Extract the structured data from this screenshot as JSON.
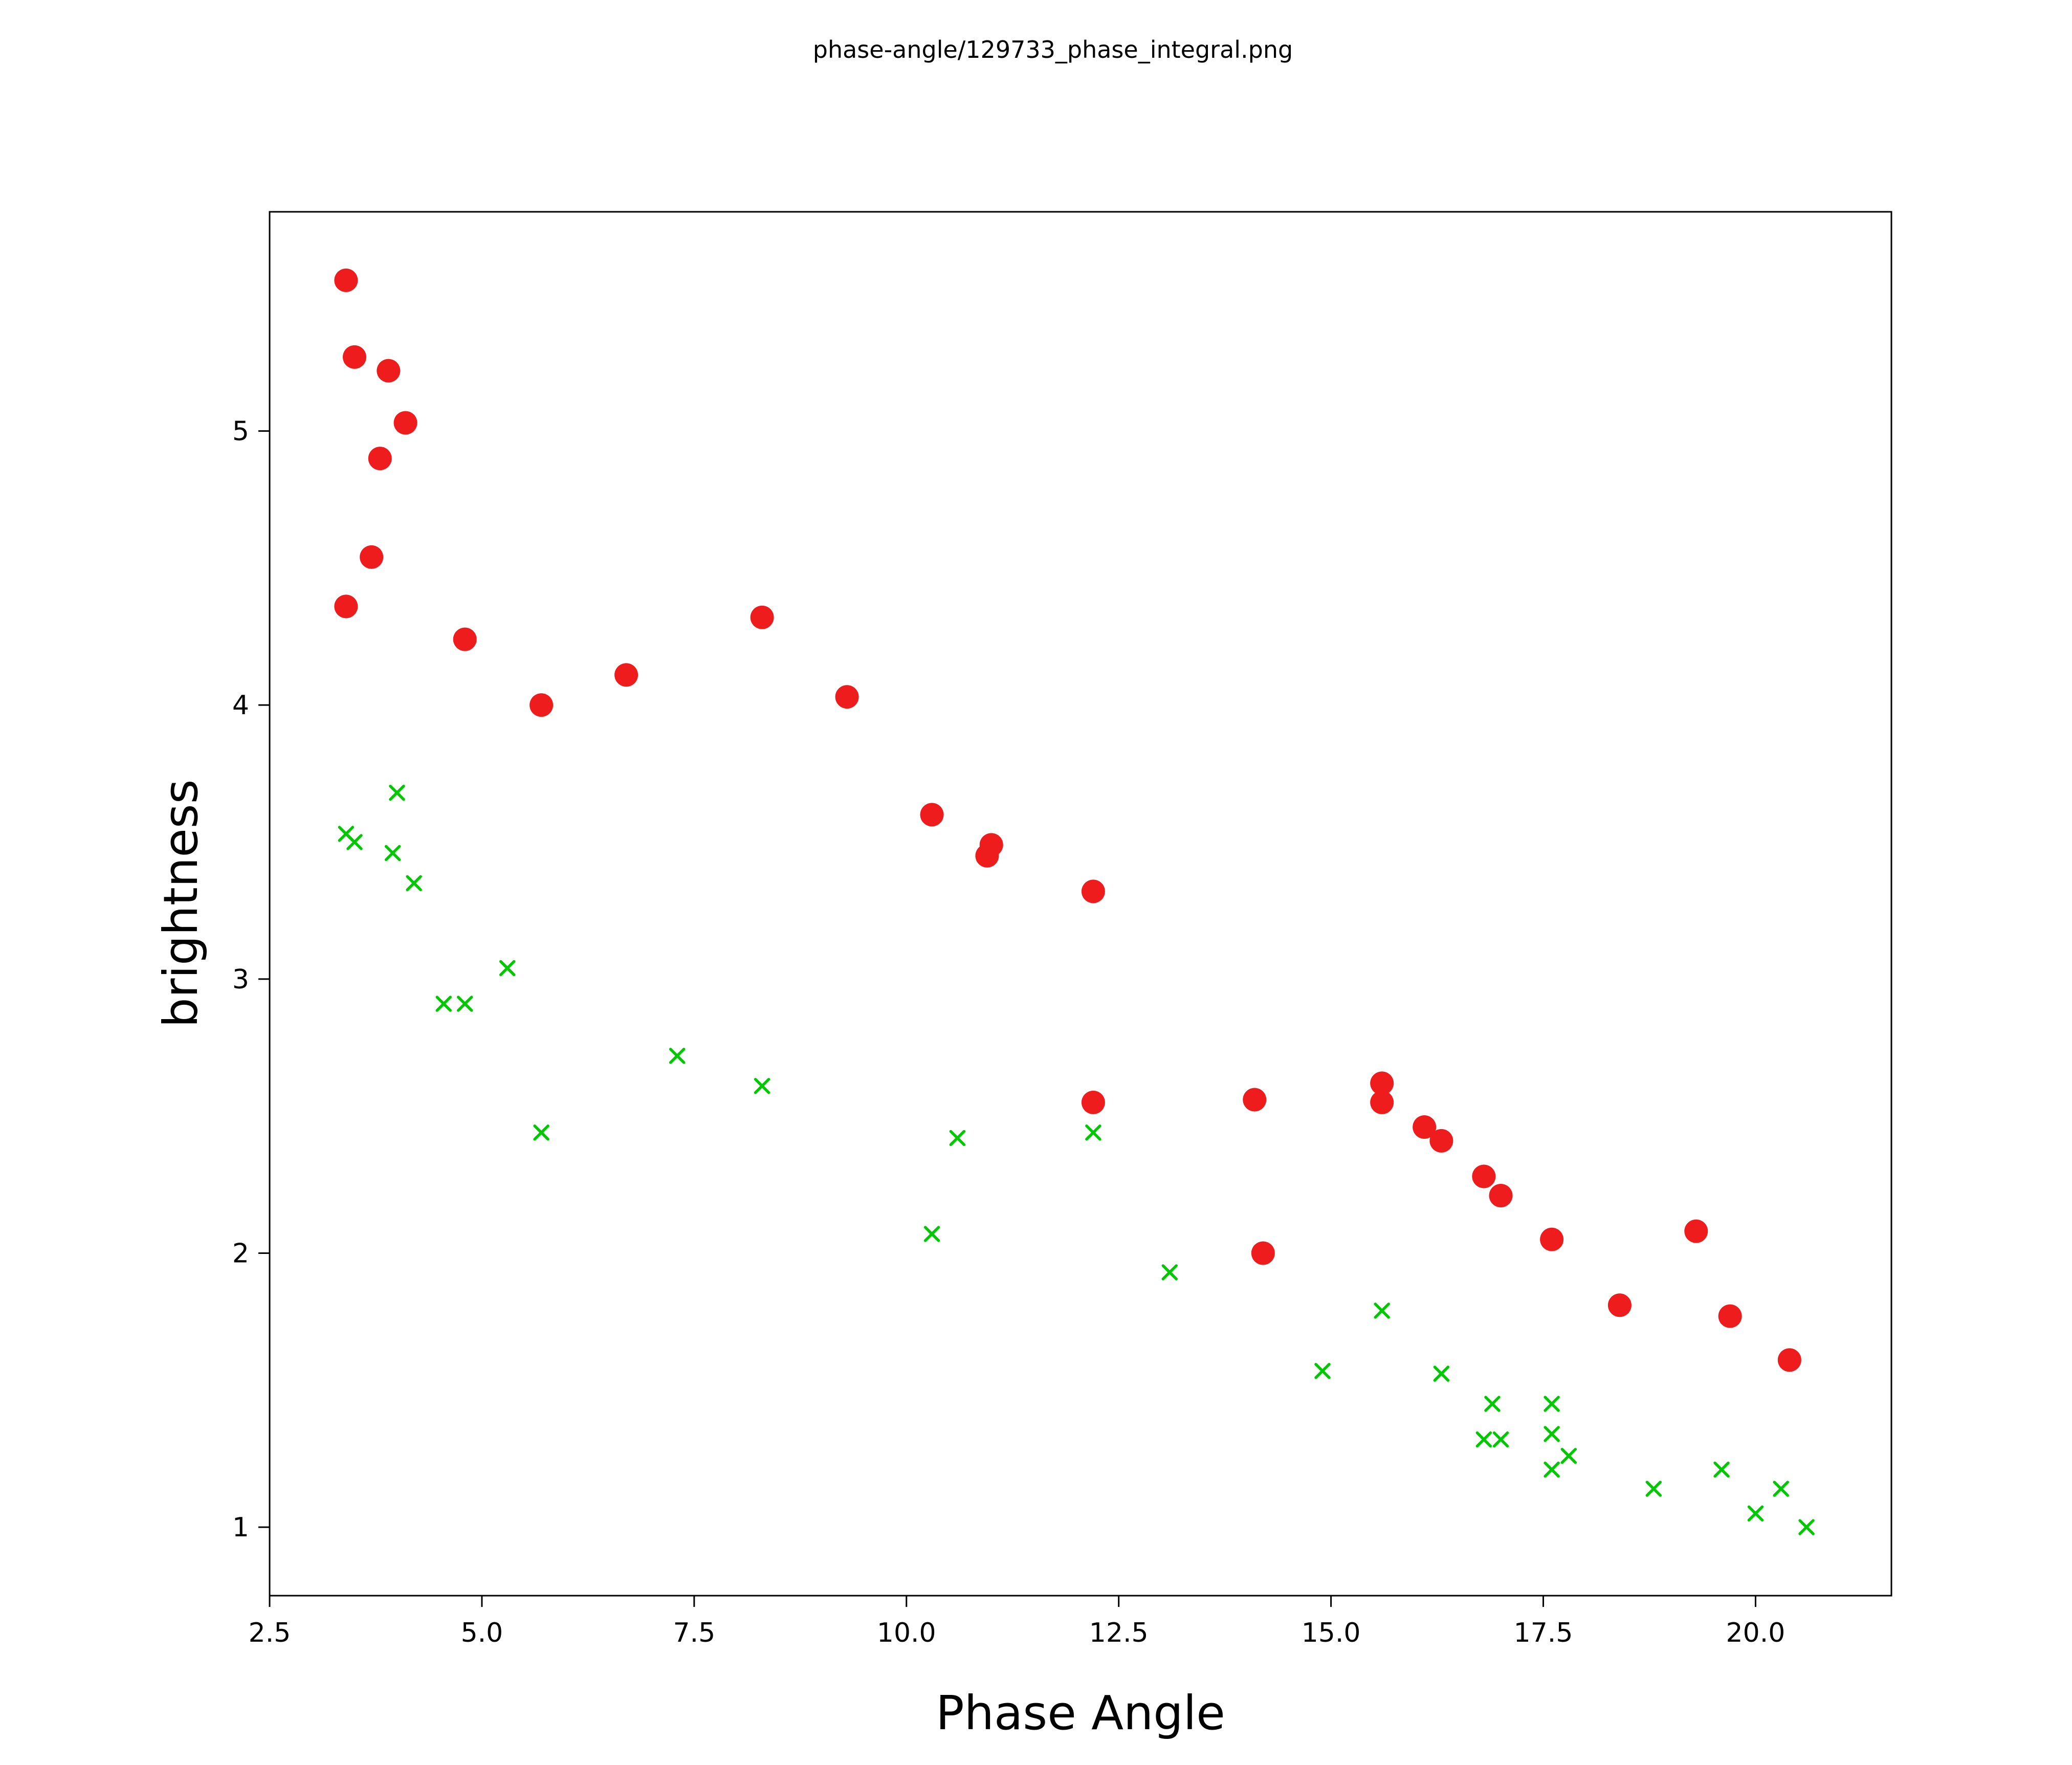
{
  "chart_data": {
    "type": "scatter",
    "title": "phase-angle/129733_phase_integral.png",
    "xlabel": "Phase Angle",
    "ylabel": "brightness",
    "xlim": [
      2.5,
      21.6
    ],
    "ylim": [
      0.75,
      5.8
    ],
    "x_ticks": [
      2.5,
      5.0,
      7.5,
      10.0,
      12.5,
      15.0,
      17.5,
      20.0
    ],
    "x_tick_labels": [
      "2.5",
      "5.0",
      "7.5",
      "10.0",
      "12.5",
      "15.0",
      "17.5",
      "20.0"
    ],
    "y_ticks": [
      1,
      2,
      3,
      4,
      5
    ],
    "y_tick_labels": [
      "1",
      "2",
      "3",
      "4",
      "5"
    ],
    "grid": false,
    "legend": null,
    "series": [
      {
        "name": "red-circles",
        "marker": "circle",
        "color": "#ee1c1c",
        "points": [
          [
            3.4,
            5.55
          ],
          [
            3.5,
            5.27
          ],
          [
            3.9,
            5.22
          ],
          [
            4.1,
            5.03
          ],
          [
            3.8,
            4.9
          ],
          [
            3.7,
            4.54
          ],
          [
            3.4,
            4.36
          ],
          [
            4.8,
            4.24
          ],
          [
            5.7,
            4.0
          ],
          [
            6.7,
            4.11
          ],
          [
            8.3,
            4.32
          ],
          [
            9.3,
            4.03
          ],
          [
            10.3,
            3.6
          ],
          [
            11.0,
            3.49
          ],
          [
            10.95,
            3.45
          ],
          [
            12.2,
            3.32
          ],
          [
            12.2,
            2.55
          ],
          [
            14.1,
            2.56
          ],
          [
            14.2,
            2.0
          ],
          [
            15.6,
            2.62
          ],
          [
            15.6,
            2.55
          ],
          [
            16.1,
            2.46
          ],
          [
            16.3,
            2.41
          ],
          [
            16.8,
            2.28
          ],
          [
            17.0,
            2.21
          ],
          [
            17.6,
            2.05
          ],
          [
            18.4,
            1.81
          ],
          [
            19.3,
            2.08
          ],
          [
            19.7,
            1.77
          ],
          [
            20.4,
            1.61
          ]
        ]
      },
      {
        "name": "green-crosses",
        "marker": "x",
        "color": "#00c800",
        "points": [
          [
            3.4,
            3.53
          ],
          [
            3.5,
            3.5
          ],
          [
            4.0,
            3.68
          ],
          [
            3.95,
            3.46
          ],
          [
            4.2,
            3.35
          ],
          [
            4.55,
            2.91
          ],
          [
            4.8,
            2.91
          ],
          [
            5.3,
            3.04
          ],
          [
            5.7,
            2.44
          ],
          [
            7.3,
            2.72
          ],
          [
            8.3,
            2.61
          ],
          [
            10.3,
            2.07
          ],
          [
            10.6,
            2.42
          ],
          [
            12.2,
            2.44
          ],
          [
            13.1,
            1.93
          ],
          [
            14.9,
            1.57
          ],
          [
            15.6,
            1.79
          ],
          [
            16.3,
            1.56
          ],
          [
            16.9,
            1.45
          ],
          [
            17.6,
            1.45
          ],
          [
            16.8,
            1.32
          ],
          [
            17.0,
            1.32
          ],
          [
            17.6,
            1.34
          ],
          [
            17.6,
            1.21
          ],
          [
            17.8,
            1.26
          ],
          [
            18.8,
            1.14
          ],
          [
            19.6,
            1.21
          ],
          [
            20.0,
            1.05
          ],
          [
            20.3,
            1.14
          ],
          [
            20.6,
            1.0
          ]
        ]
      }
    ]
  }
}
